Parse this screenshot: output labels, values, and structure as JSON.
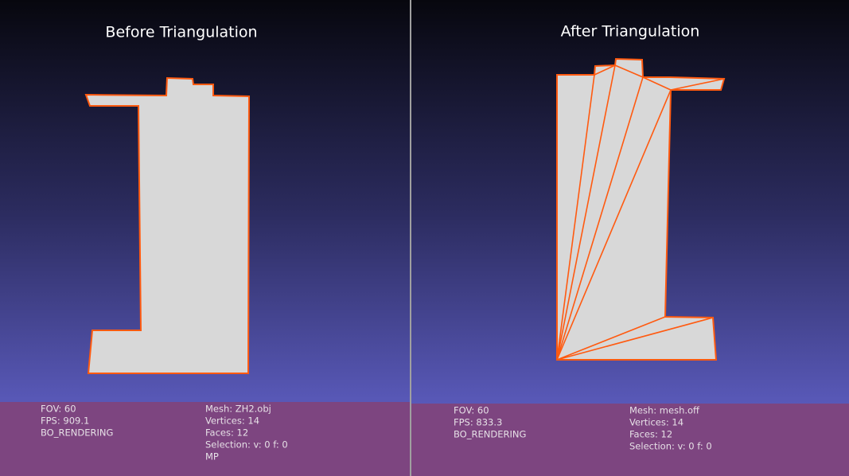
{
  "panels": [
    {
      "title": "Before Triangulation",
      "info_left": [
        "FOV: 60",
        "FPS:  909.1",
        "BO_RENDERING"
      ],
      "info_right": [
        "Mesh: ZH2.obj",
        "Vertices: 14",
        "Faces: 12",
        "Selection: v: 0 f: 0",
        "MP"
      ]
    },
    {
      "title": "After Triangulation",
      "info_left": [
        "FOV: 60",
        "FPS:  833.3",
        "BO_RENDERING"
      ],
      "info_right": [
        "Mesh: mesh.off",
        "Vertices: 14",
        "Faces: 12",
        "Selection: v: 0 f: 0"
      ]
    }
  ]
}
